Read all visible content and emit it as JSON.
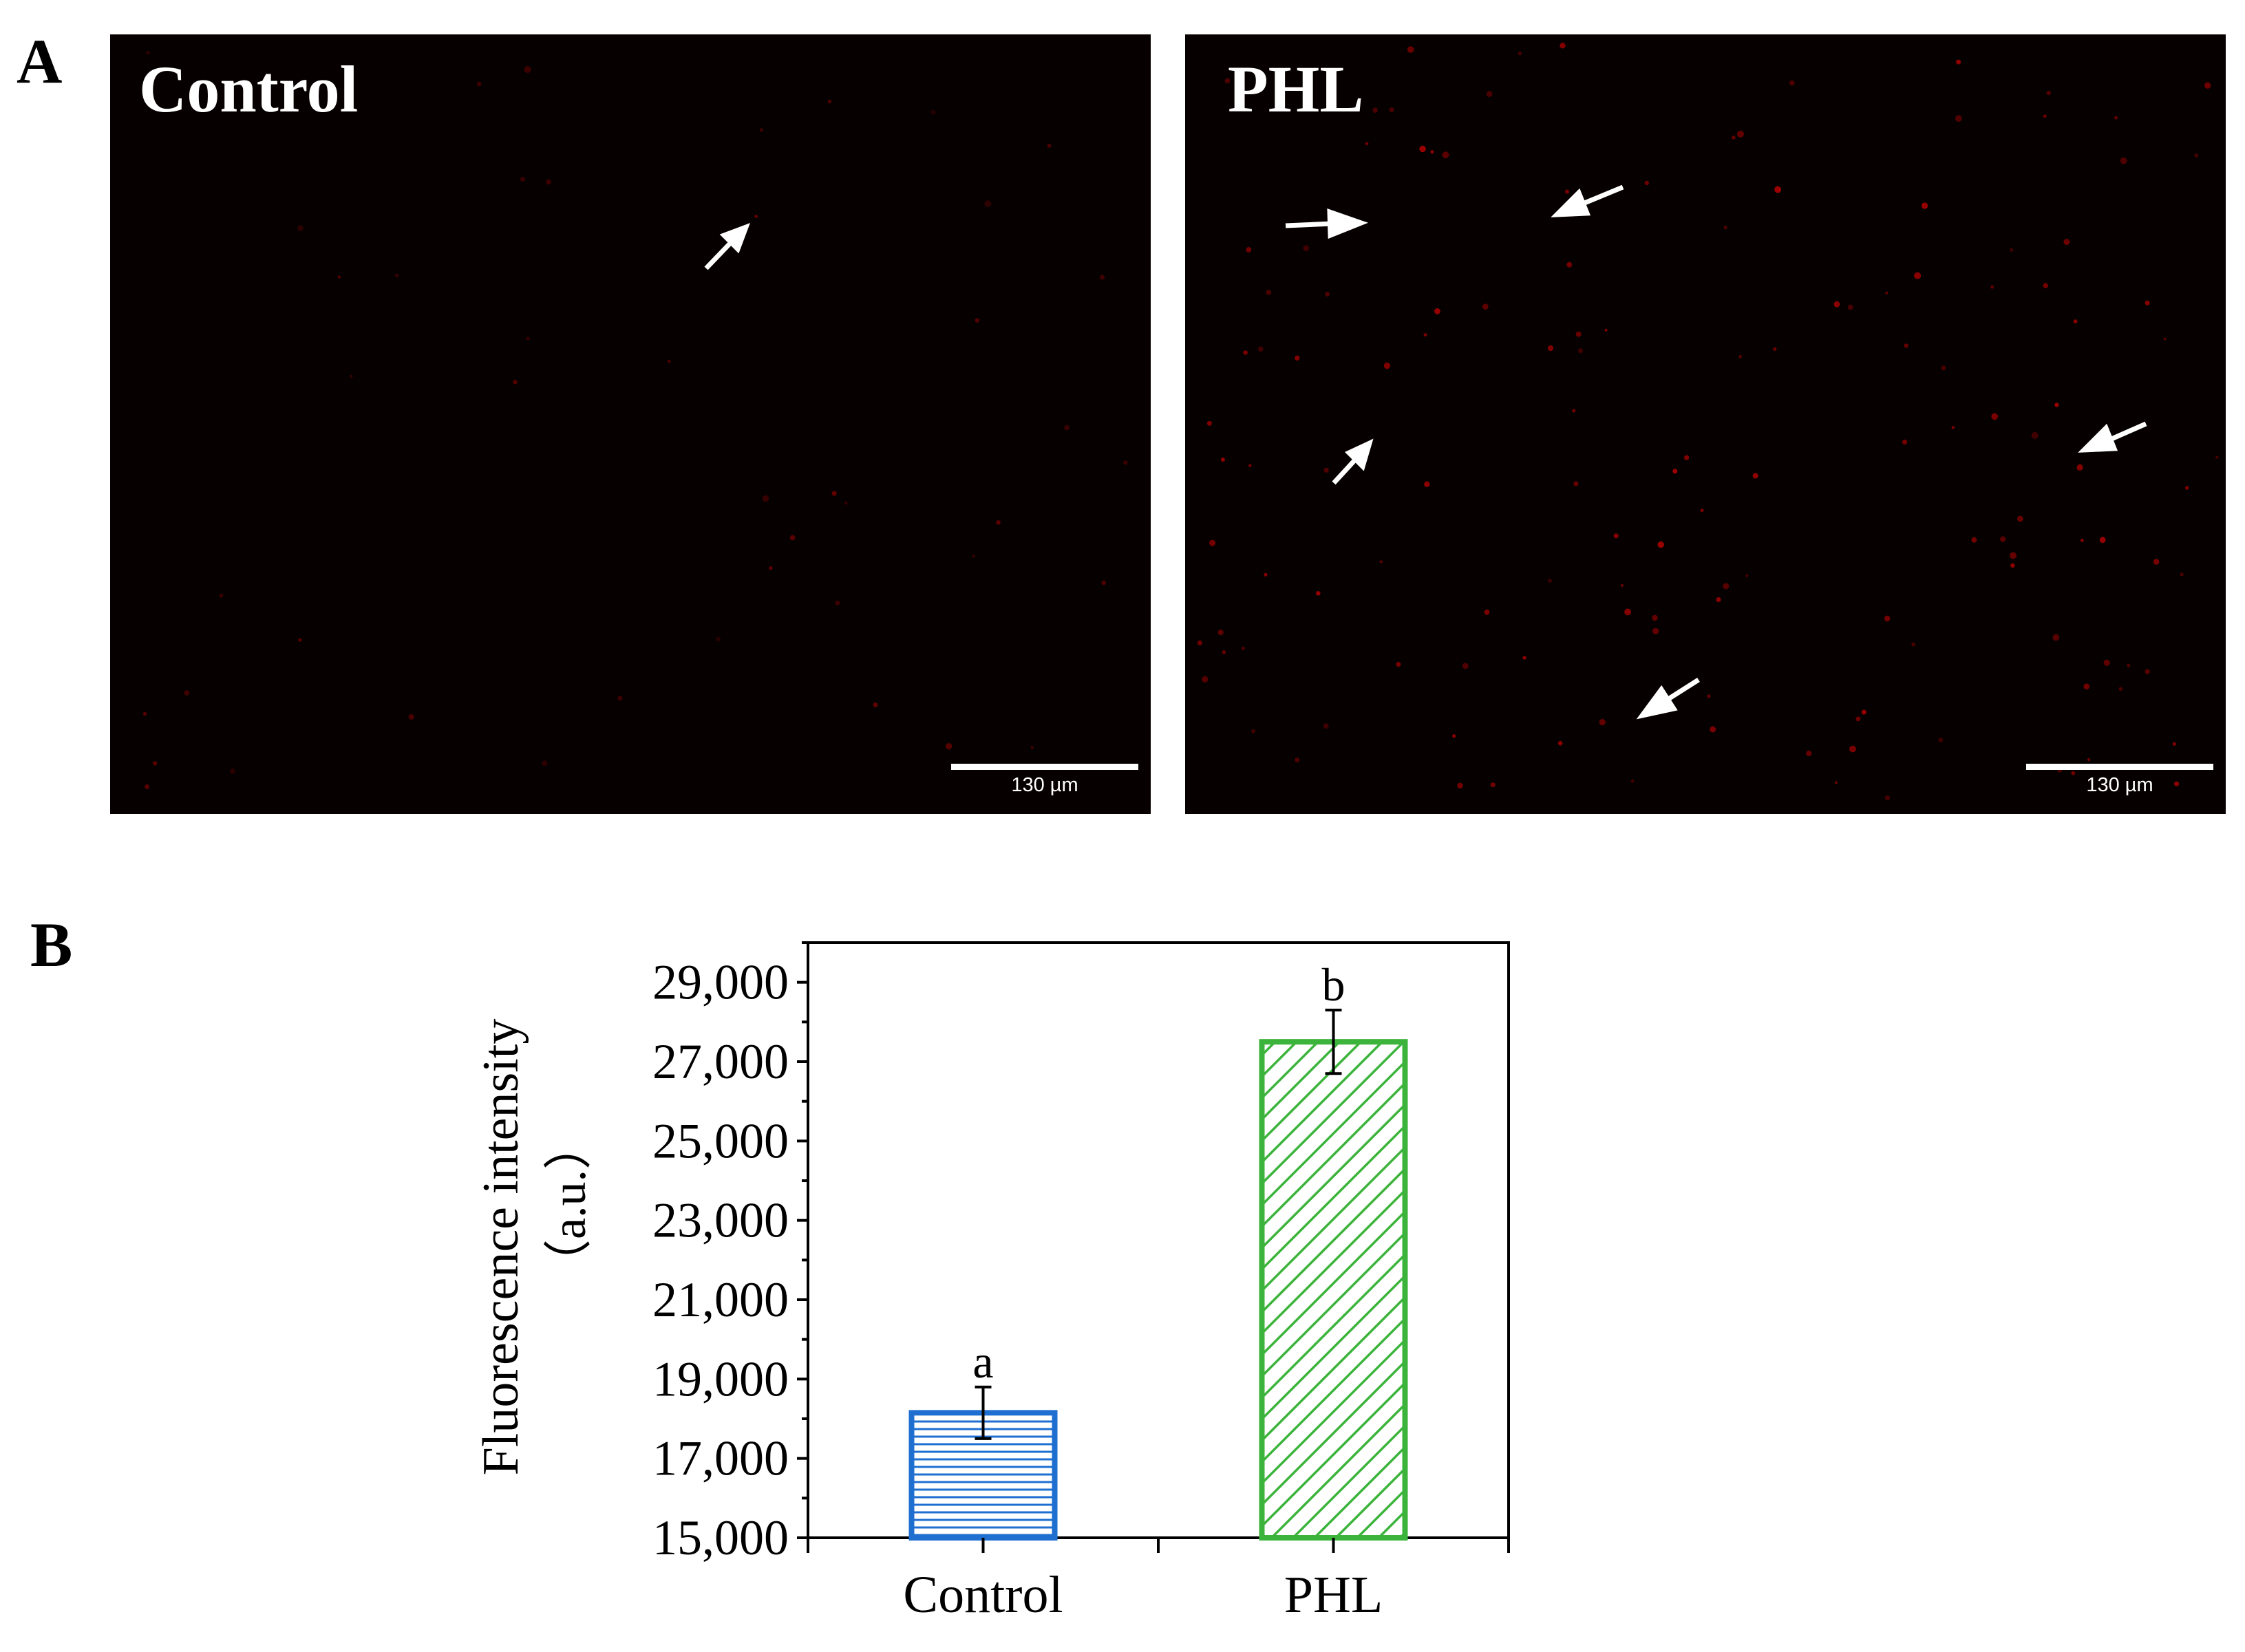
{
  "panel_a": {
    "letter": "A",
    "images": [
      {
        "label": "Control",
        "scale_text": "130 µm"
      },
      {
        "label": "PHL",
        "scale_text": "130 µm"
      }
    ]
  },
  "panel_b": {
    "letter": "B"
  },
  "colors": {
    "control_bar": "#1f6fd1",
    "phl_bar": "#3cb43c",
    "micrograph_bg": "#070000",
    "dot": "#b00000"
  },
  "chart_data": {
    "type": "bar",
    "categories": [
      "Control",
      "PHL"
    ],
    "values": [
      18150,
      27500
    ],
    "errors": [
      650,
      800
    ],
    "significance": [
      "a",
      "b"
    ],
    "ylabel_line1": "Fluorescence intensity",
    "ylabel_line2": "（a.u.）",
    "ylim": [
      15000,
      30000
    ],
    "yticks": [
      "15,000",
      "17,000",
      "19,000",
      "21,000",
      "23,000",
      "25,000",
      "27,000",
      "29,000"
    ],
    "ytick_values": [
      15000,
      17000,
      19000,
      21000,
      23000,
      25000,
      27000,
      29000
    ],
    "grid": false,
    "fill_patterns": [
      "horizontal-lines",
      "diagonal-lines"
    ]
  }
}
